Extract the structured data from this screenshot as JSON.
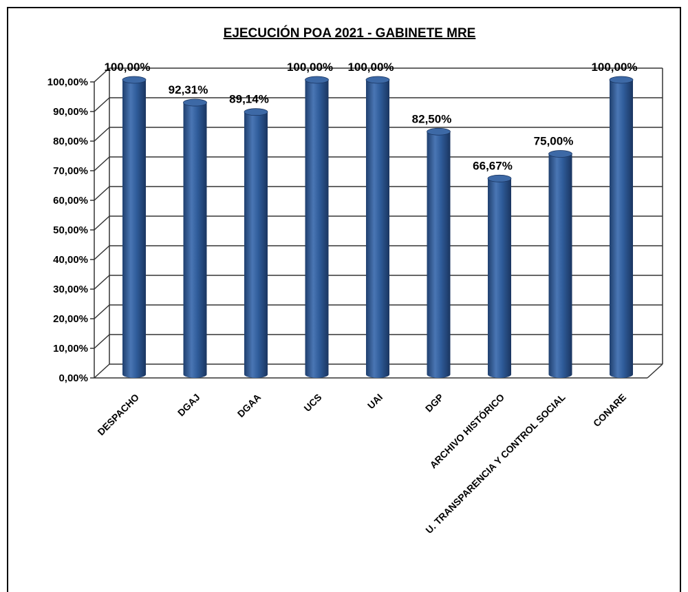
{
  "chart_data": {
    "type": "bar",
    "title": "EJECUCIÓN POA 2021 - GABINETE MRE",
    "categories": [
      "DESPACHO",
      "DGAJ",
      "DGAA",
      "UCS",
      "UAI",
      "DGP",
      "ARCHIVO HISTÓRICO",
      "U. TRANSPARENCIA Y CONTROL SOCIAL",
      "CONARE"
    ],
    "values": [
      100.0,
      92.31,
      89.14,
      100.0,
      100.0,
      82.5,
      66.67,
      75.0,
      100.0
    ],
    "data_labels": [
      "100,00%",
      "92,31%",
      "89,14%",
      "100,00%",
      "100,00%",
      "82,50%",
      "66,67%",
      "75,00%",
      "100,00%"
    ],
    "ylim": [
      0,
      100
    ],
    "yticks": [
      0,
      10,
      20,
      30,
      40,
      50,
      60,
      70,
      80,
      90,
      100
    ],
    "ytick_labels": [
      "0,00%",
      "10,00%",
      "20,00%",
      "30,00%",
      "40,00%",
      "50,00%",
      "60,00%",
      "70,00%",
      "80,00%",
      "90,00%",
      "100,00%"
    ],
    "grid": true,
    "legend": false,
    "bar_color": "#2b5692"
  }
}
